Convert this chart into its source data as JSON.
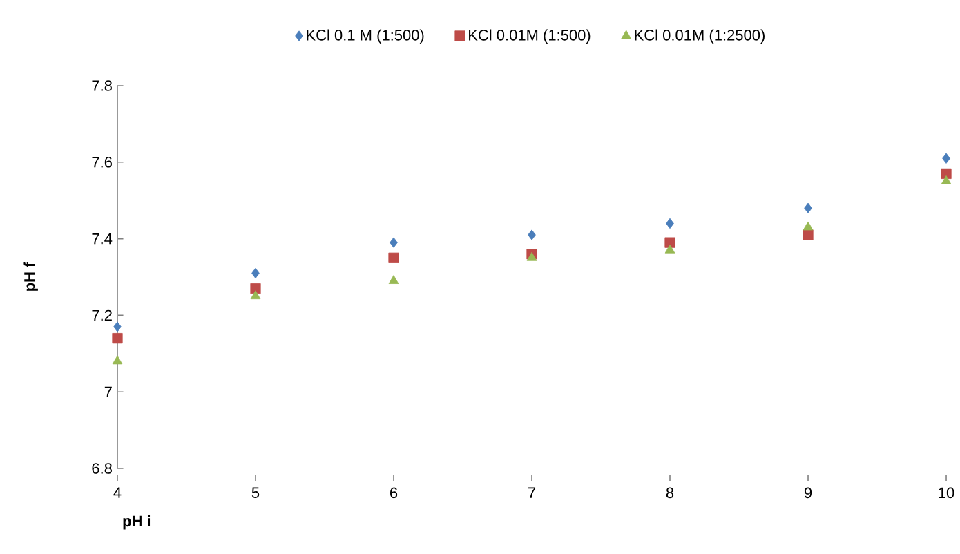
{
  "chart_data": {
    "type": "scatter",
    "xlabel": "pH i",
    "ylabel": "pH f",
    "x": [
      4,
      5,
      6,
      7,
      8,
      9,
      10
    ],
    "series": [
      {
        "name": "KCl 0.1 M (1:500)",
        "color": "#4a7ebb",
        "marker": "diamond",
        "values": [
          7.17,
          7.31,
          7.39,
          7.41,
          7.44,
          7.48,
          7.61
        ]
      },
      {
        "name": "KCl 0.01M (1:500)",
        "color": "#be4b48",
        "marker": "square",
        "values": [
          7.14,
          7.27,
          7.35,
          7.36,
          7.39,
          7.41,
          7.57
        ]
      },
      {
        "name": "KCl 0.01M (1:2500)",
        "color": "#98b954",
        "marker": "triangle",
        "values": [
          7.08,
          7.25,
          7.29,
          7.35,
          7.37,
          7.43,
          7.55
        ]
      }
    ],
    "xlim": [
      4,
      10
    ],
    "xticks": [
      4,
      5,
      6,
      7,
      8,
      9,
      10
    ],
    "ylim": [
      6.8,
      7.8
    ],
    "yticks": [
      6.8,
      7,
      7.2,
      7.4,
      7.6,
      7.8
    ],
    "grid": false,
    "legend": "top"
  }
}
